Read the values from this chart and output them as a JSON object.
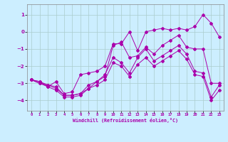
{
  "xlabel": "Windchill (Refroidissement éolien,°C)",
  "background_color": "#cceeff",
  "grid_color": "#aacccc",
  "line_color": "#aa00aa",
  "xlim": [
    -0.5,
    23.5
  ],
  "ylim": [
    -4.6,
    1.6
  ],
  "yticks": [
    -4,
    -3,
    -2,
    -1,
    0,
    1
  ],
  "xticks": [
    0,
    1,
    2,
    3,
    4,
    5,
    6,
    7,
    8,
    9,
    10,
    11,
    12,
    13,
    14,
    15,
    16,
    17,
    18,
    19,
    20,
    21,
    22,
    23
  ],
  "line1_x": [
    0,
    1,
    2,
    3,
    4,
    5,
    6,
    7,
    8,
    9,
    10,
    11,
    12,
    13,
    14,
    15,
    16,
    17,
    18,
    19,
    20,
    21,
    22,
    23
  ],
  "line1_y": [
    -2.8,
    -3.0,
    -3.2,
    -2.9,
    -3.6,
    -3.5,
    -2.5,
    -2.4,
    -2.3,
    -2.0,
    -0.7,
    -0.7,
    0.0,
    -1.1,
    0.0,
    0.1,
    0.2,
    0.1,
    0.2,
    0.1,
    0.3,
    1.0,
    0.5,
    -0.3
  ],
  "line2_x": [
    0,
    1,
    2,
    3,
    4,
    5,
    6,
    7,
    8,
    9,
    10,
    11,
    12,
    13,
    14,
    15,
    16,
    17,
    18,
    19,
    20,
    21,
    22,
    23
  ],
  "line2_y": [
    -2.8,
    -2.9,
    -3.1,
    -3.2,
    -3.7,
    -3.7,
    -3.6,
    -3.3,
    -2.9,
    -2.6,
    -0.8,
    -0.6,
    -1.5,
    -1.4,
    -0.9,
    -1.3,
    -0.8,
    -0.5,
    -0.2,
    -0.9,
    -1.0,
    -1.0,
    -3.0,
    -3.0
  ],
  "line3_x": [
    0,
    1,
    2,
    3,
    4,
    5,
    6,
    7,
    8,
    9,
    10,
    11,
    12,
    13,
    14,
    15,
    16,
    17,
    18,
    19,
    20,
    21,
    22,
    23
  ],
  "line3_y": [
    -2.8,
    -3.0,
    -3.1,
    -3.3,
    -3.7,
    -3.7,
    -3.6,
    -3.1,
    -2.9,
    -2.5,
    -1.5,
    -1.8,
    -2.4,
    -1.5,
    -1.0,
    -1.7,
    -1.4,
    -1.1,
    -0.8,
    -1.3,
    -2.3,
    -2.4,
    -3.8,
    -3.1
  ],
  "line4_x": [
    0,
    1,
    2,
    3,
    4,
    5,
    6,
    7,
    8,
    9,
    10,
    11,
    12,
    13,
    14,
    15,
    16,
    17,
    18,
    19,
    20,
    21,
    22,
    23
  ],
  "line4_y": [
    -2.8,
    -2.9,
    -3.2,
    -3.4,
    -3.8,
    -3.8,
    -3.7,
    -3.3,
    -3.1,
    -2.8,
    -1.8,
    -2.0,
    -2.6,
    -1.9,
    -1.5,
    -2.0,
    -1.7,
    -1.4,
    -1.1,
    -1.6,
    -2.5,
    -2.6,
    -4.0,
    -3.4
  ]
}
